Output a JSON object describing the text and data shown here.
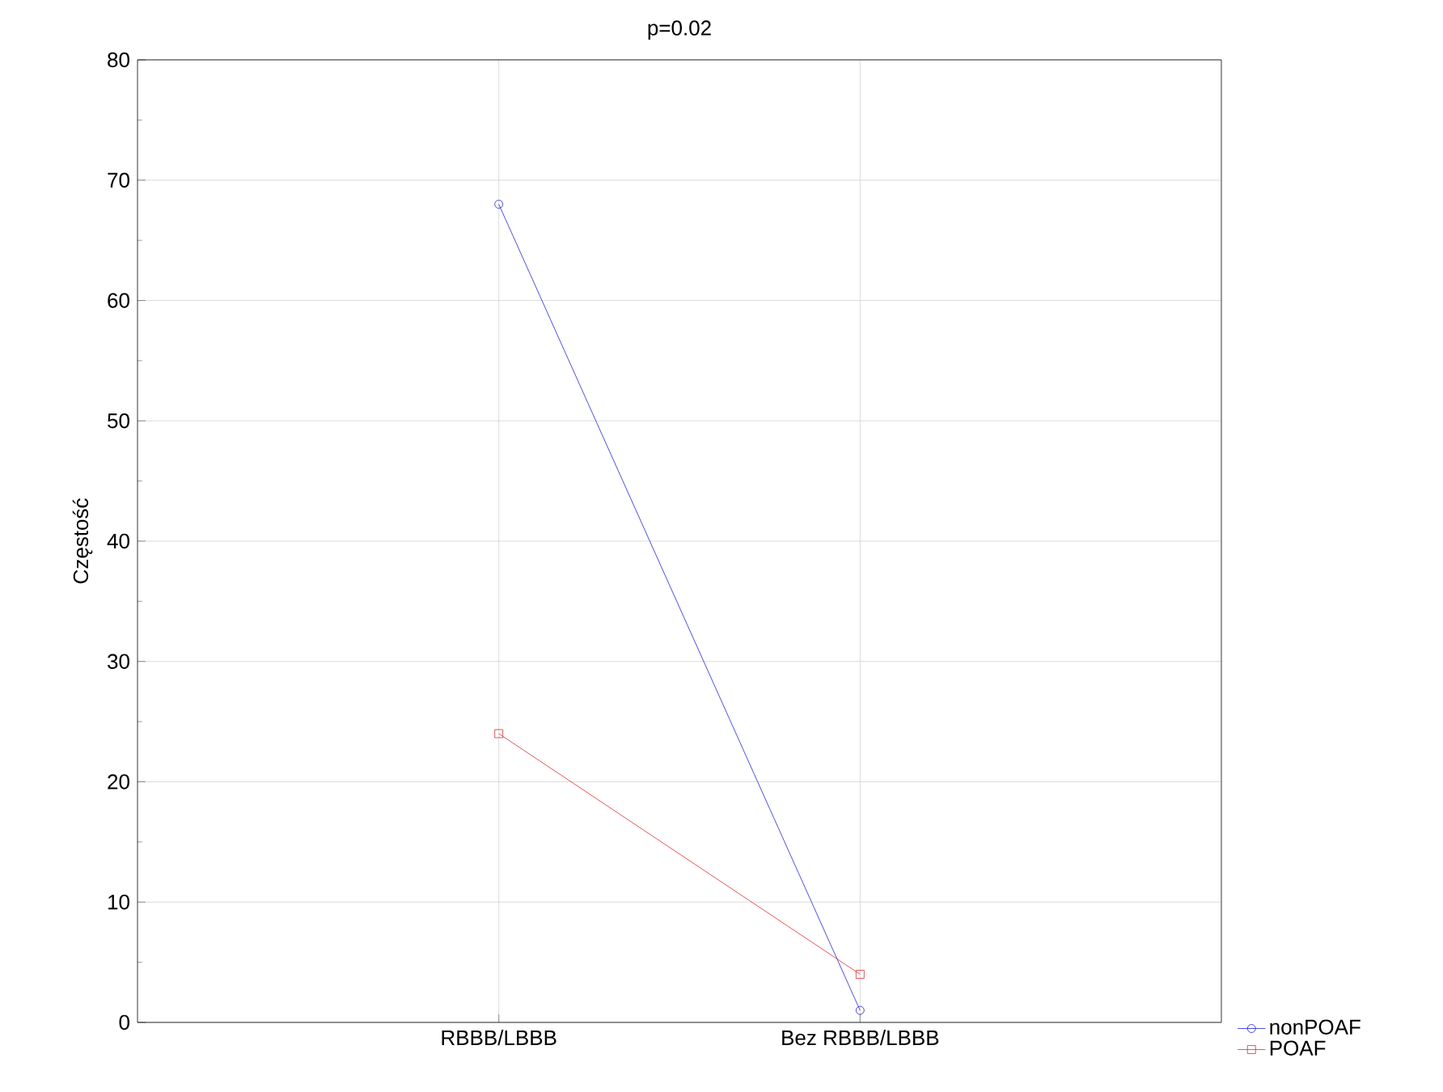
{
  "chart_data": {
    "type": "line",
    "title": "p=0.02",
    "ylabel": "Częstość",
    "categories": [
      "RBBB/LBBB",
      "Bez RBBB/LBBB"
    ],
    "series": [
      {
        "name": "nonPOAF",
        "color": "#1f1fd6",
        "values": [
          68,
          1
        ],
        "marker": "circle"
      },
      {
        "name": "POAF",
        "color": "#dd2b2b",
        "values": [
          24,
          4
        ],
        "marker": "square"
      }
    ],
    "ylim": [
      0,
      80
    ],
    "yticks": [
      0,
      10,
      20,
      30,
      40,
      50,
      60,
      70,
      80
    ],
    "grid": true,
    "legend": "bottom right",
    "line_style": "solid"
  }
}
